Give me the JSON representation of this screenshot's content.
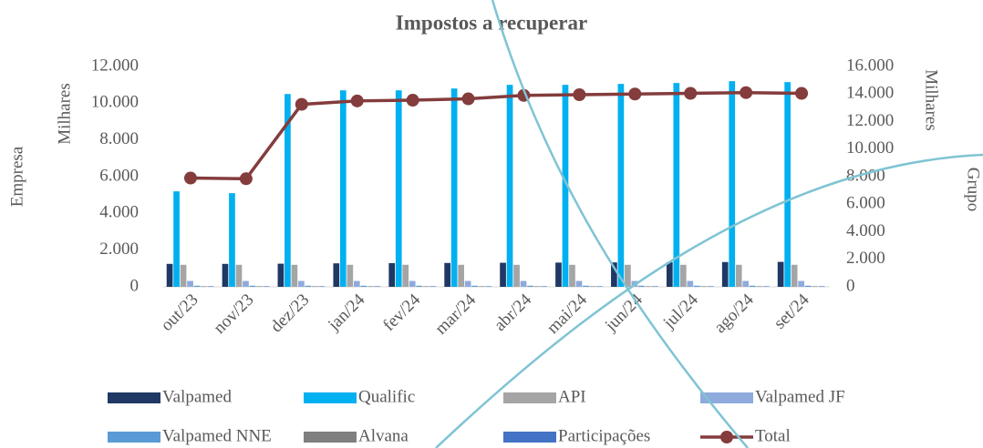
{
  "chart_data": {
    "type": "bar",
    "title": "Impostos a recuperar",
    "y_label": "Empresa",
    "y_unit": "Milhares",
    "y2_label": "Grupo",
    "y2_unit": "Milhares",
    "categories": [
      "out/23",
      "nov/23",
      "dez/23",
      "jan/24",
      "fev/24",
      "mar/24",
      "abr/24",
      "mai/24",
      "jun/24",
      "jul/24",
      "ago/24",
      "set/24"
    ],
    "series": [
      {
        "name": "Valpamed",
        "color": "#1f3864",
        "values": [
          1250,
          1250,
          1260,
          1280,
          1290,
          1300,
          1310,
          1320,
          1330,
          1340,
          1350,
          1360
        ]
      },
      {
        "name": "Qualific",
        "color": "#00b0f0",
        "values": [
          5200,
          5100,
          10500,
          10700,
          10700,
          10800,
          11000,
          11000,
          11050,
          11100,
          11200,
          11150
        ]
      },
      {
        "name": "API",
        "color": "#a5a5a5",
        "values": [
          1200,
          1200,
          1200,
          1200,
          1200,
          1200,
          1200,
          1200,
          1200,
          1200,
          1200,
          1200
        ]
      },
      {
        "name": "Valpamed JF",
        "color": "#8faadc",
        "values": [
          320,
          320,
          320,
          320,
          320,
          320,
          320,
          320,
          320,
          320,
          320,
          320
        ]
      },
      {
        "name": "Valpamed NNE",
        "color": "#5b9bd5",
        "values": [
          60,
          60,
          60,
          60,
          60,
          60,
          60,
          60,
          60,
          60,
          60,
          60
        ]
      },
      {
        "name": "Alvana",
        "color": "#7f7f7f",
        "values": [
          30,
          30,
          30,
          30,
          30,
          30,
          30,
          30,
          30,
          30,
          30,
          30
        ]
      },
      {
        "name": "Participações",
        "color": "#4472c4",
        "values": [
          30,
          30,
          30,
          30,
          30,
          30,
          30,
          30,
          30,
          30,
          30,
          30
        ]
      },
      {
        "name": "Total",
        "type": "line",
        "axis": "y2",
        "color": "#843c3c",
        "values": [
          7900,
          7850,
          13250,
          13500,
          13550,
          13650,
          13900,
          13950,
          14000,
          14050,
          14100,
          14050
        ]
      }
    ],
    "ylim": [
      0,
      12000
    ],
    "yticks": [
      0,
      {
        "value": 2000,
        "label": "2.000"
      },
      {
        "value": 4000,
        "label": "4.000"
      },
      {
        "value": 6000,
        "label": "6.000"
      },
      {
        "value": 8000,
        "label": "8.000"
      },
      {
        "value": 10000,
        "label": "10.000"
      },
      {
        "value": 12000,
        "label": "12.000"
      }
    ],
    "y2lim": [
      0,
      16000
    ],
    "y2ticks": [
      0,
      {
        "value": 2000,
        "label": "2.000"
      },
      {
        "value": 4000,
        "label": "4.000"
      },
      {
        "value": 6000,
        "label": "6.000"
      },
      {
        "value": 8000,
        "label": "8.000"
      },
      {
        "value": 10000,
        "label": "10.000"
      },
      {
        "value": 12000,
        "label": "12.000"
      },
      {
        "value": 14000,
        "label": "14.000"
      },
      {
        "value": 16000,
        "label": "16.000"
      }
    ],
    "legend": "bottom"
  }
}
